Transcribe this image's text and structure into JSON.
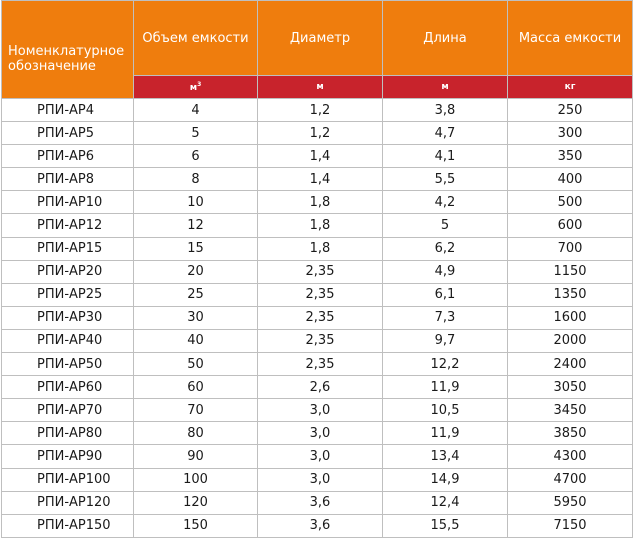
{
  "headers": {
    "name": "Номенклатурное обозначение",
    "volume": "Объем емкости",
    "diameter": "Диаметр",
    "length": "Длина",
    "mass": "Масса емкости"
  },
  "units": {
    "volume": "м",
    "volume_sup": "3",
    "diameter": "м",
    "length": "м",
    "mass": "кг"
  },
  "rows": [
    {
      "name": "РПИ-АР4",
      "volume": "4",
      "diameter": "1,2",
      "length": "3,8",
      "mass": "250"
    },
    {
      "name": "РПИ-АР5",
      "volume": "5",
      "diameter": "1,2",
      "length": "4,7",
      "mass": "300"
    },
    {
      "name": "РПИ-АР6",
      "volume": "6",
      "diameter": "1,4",
      "length": "4,1",
      "mass": "350"
    },
    {
      "name": "РПИ-АР8",
      "volume": "8",
      "diameter": "1,4",
      "length": "5,5",
      "mass": "400"
    },
    {
      "name": "РПИ-АР10",
      "volume": "10",
      "diameter": "1,8",
      "length": "4,2",
      "mass": "500"
    },
    {
      "name": "РПИ-АР12",
      "volume": "12",
      "diameter": "1,8",
      "length": "5",
      "mass": "600"
    },
    {
      "name": "РПИ-АР15",
      "volume": "15",
      "diameter": "1,8",
      "length": "6,2",
      "mass": "700"
    },
    {
      "name": "РПИ-АР20",
      "volume": "20",
      "diameter": "2,35",
      "length": "4,9",
      "mass": "1150"
    },
    {
      "name": "РПИ-АР25",
      "volume": "25",
      "diameter": "2,35",
      "length": "6,1",
      "mass": "1350"
    },
    {
      "name": "РПИ-АР30",
      "volume": "30",
      "diameter": "2,35",
      "length": "7,3",
      "mass": "1600"
    },
    {
      "name": "РПИ-АР40",
      "volume": "40",
      "diameter": "2,35",
      "length": "9,7",
      "mass": "2000"
    },
    {
      "name": "РПИ-АР50",
      "volume": "50",
      "diameter": "2,35",
      "length": "12,2",
      "mass": "2400"
    },
    {
      "name": "РПИ-АР60",
      "volume": "60",
      "diameter": "2,6",
      "length": "11,9",
      "mass": "3050"
    },
    {
      "name": "РПИ-АР70",
      "volume": "70",
      "diameter": "3,0",
      "length": "10,5",
      "mass": "3450"
    },
    {
      "name": "РПИ-АР80",
      "volume": "80",
      "diameter": "3,0",
      "length": "11,9",
      "mass": "3850"
    },
    {
      "name": "РПИ-АР90",
      "volume": "90",
      "diameter": "3,0",
      "length": "13,4",
      "mass": "4300"
    },
    {
      "name": "РПИ-АР100",
      "volume": "100",
      "diameter": "3,0",
      "length": "14,9",
      "mass": "4700"
    },
    {
      "name": "РПИ-АР120",
      "volume": "120",
      "diameter": "3,6",
      "length": "12,4",
      "mass": "5950"
    },
    {
      "name": "РПИ-АР150",
      "volume": "150",
      "diameter": "3,6",
      "length": "15,5",
      "mass": "7150"
    }
  ],
  "colors": {
    "header_orange": "#ef7d0d",
    "unit_red": "#c8232c",
    "grid": "#bfbfbf"
  }
}
